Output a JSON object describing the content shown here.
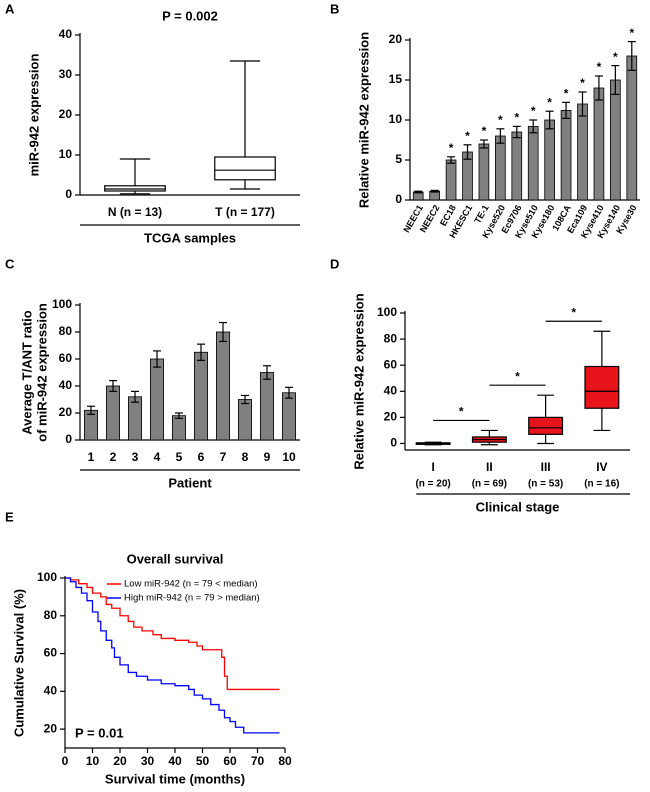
{
  "chart_data": [
    {
      "type": "box",
      "panel": "A",
      "title": "P = 0.002",
      "ylabel": [
        "miR-942 expression"
      ],
      "xlabel": "TCGA samples",
      "categories": [
        "N (n = 13)",
        "T (n = 177)"
      ],
      "color": "#ffffff",
      "boxes": [
        {
          "min": 0.3,
          "q1": 1.0,
          "median": 1.5,
          "q3": 2.3,
          "max": 9
        },
        {
          "min": 1.5,
          "q1": 3.8,
          "median": 6.2,
          "q3": 9.5,
          "max": 33.5
        }
      ],
      "ylim": [
        0,
        40
      ],
      "yticks": [
        0,
        10,
        20,
        30,
        40
      ]
    },
    {
      "type": "bar",
      "panel": "B",
      "ylabel": [
        "Relative miR-942 expression"
      ],
      "color": "#808080",
      "categories": [
        "NEEC1",
        "NEEC2",
        "EC18",
        "HKESC1",
        "TE-1",
        "Kyse520",
        "Ec9706",
        "Kyse510",
        "Kyse180",
        "108CA",
        "Eca109",
        "Kyse410",
        "Kyse140",
        "Kyse30"
      ],
      "values": [
        1,
        1.1,
        5,
        6,
        7,
        8,
        8.5,
        9.2,
        10,
        11.2,
        12,
        14,
        15,
        18
      ],
      "errors": [
        0.1,
        0.1,
        0.4,
        0.9,
        0.5,
        0.9,
        0.7,
        0.8,
        1.1,
        1.0,
        1.5,
        1.5,
        1.8,
        1.8
      ],
      "significance": [
        null,
        null,
        "*",
        "*",
        "*",
        "*",
        "*",
        "*",
        "*",
        "*",
        "*",
        "*",
        "*",
        "*"
      ],
      "ylim": [
        0,
        20
      ],
      "yticks": [
        0,
        5,
        10,
        15,
        20
      ]
    },
    {
      "type": "bar",
      "panel": "C",
      "ylabel": [
        "Average T/ANT ratio",
        "of miR-942 expression"
      ],
      "xlabel": "Patient",
      "color": "#808080",
      "categories": [
        "1",
        "2",
        "3",
        "4",
        "5",
        "6",
        "7",
        "8",
        "9",
        "10"
      ],
      "values": [
        22,
        40,
        32,
        60,
        18,
        65,
        80,
        30,
        50,
        35
      ],
      "errors": [
        3,
        4,
        4,
        6,
        2,
        6,
        7,
        3,
        5,
        4
      ],
      "ylim": [
        0,
        100
      ],
      "yticks": [
        0,
        20,
        40,
        60,
        80,
        100
      ]
    },
    {
      "type": "box",
      "panel": "D",
      "ylabel": [
        "Relative miR-942 expression"
      ],
      "xlabel": "Clinical stage",
      "color": "#e8141b",
      "categories": [
        "I",
        "II",
        "III",
        "IV"
      ],
      "sublabels": [
        "(n = 20)",
        "(n = 69)",
        "(n = 53)",
        "(n = 16)"
      ],
      "boxes": [
        {
          "min": -1,
          "q1": -0.5,
          "median": 0,
          "q3": 0.5,
          "max": 1
        },
        {
          "min": -1,
          "q1": 1,
          "median": 3,
          "q3": 5,
          "max": 10
        },
        {
          "min": 0,
          "q1": 7,
          "median": 12,
          "q3": 20,
          "max": 37
        },
        {
          "min": 10,
          "q1": 27,
          "median": 40,
          "q3": 59,
          "max": 86
        }
      ],
      "significance": [
        "*",
        "*",
        "*"
      ],
      "ylim": [
        -5,
        100
      ],
      "yticks": [
        0,
        20,
        40,
        60,
        80,
        100
      ]
    },
    {
      "type": "line",
      "panel": "E",
      "title": "Overall survival",
      "xlabel": "Survival time (months)",
      "ylabel": [
        "Cumulative Survival (%)"
      ],
      "annotation": "P = 0.01",
      "legend": "top-right",
      "series": [
        {
          "name": "Low miR-942 (n = 79 < median)",
          "color": "#ff0000",
          "x": [
            0,
            2,
            5,
            8,
            10,
            13,
            15,
            17,
            20,
            23,
            25,
            28,
            32,
            35,
            40,
            45,
            48,
            50,
            55,
            57,
            58,
            59,
            78
          ],
          "values": [
            100,
            99,
            97,
            95,
            92,
            90,
            86,
            84,
            80,
            77,
            74,
            72,
            70,
            68,
            67,
            66,
            64,
            62,
            62,
            58,
            48,
            41,
            41
          ]
        },
        {
          "name": "High miR-942 (n = 79 > median)",
          "color": "#0000ff",
          "x": [
            0,
            2,
            4,
            6,
            8,
            10,
            12,
            13,
            15,
            17,
            18,
            20,
            23,
            26,
            30,
            35,
            40,
            45,
            47,
            50,
            53,
            56,
            58,
            60,
            62,
            65,
            70,
            78
          ],
          "values": [
            100,
            98,
            95,
            92,
            88,
            82,
            77,
            72,
            67,
            63,
            58,
            54,
            50,
            48,
            46,
            44,
            43,
            41,
            38,
            36,
            33,
            30,
            26,
            24,
            21,
            18,
            18,
            18
          ]
        }
      ],
      "xlim": [
        0,
        80
      ],
      "xticks": [
        0,
        10,
        20,
        30,
        40,
        50,
        60,
        70,
        80
      ],
      "ylim": [
        10,
        100
      ],
      "yticks": [
        20,
        40,
        60,
        80,
        100
      ]
    }
  ]
}
